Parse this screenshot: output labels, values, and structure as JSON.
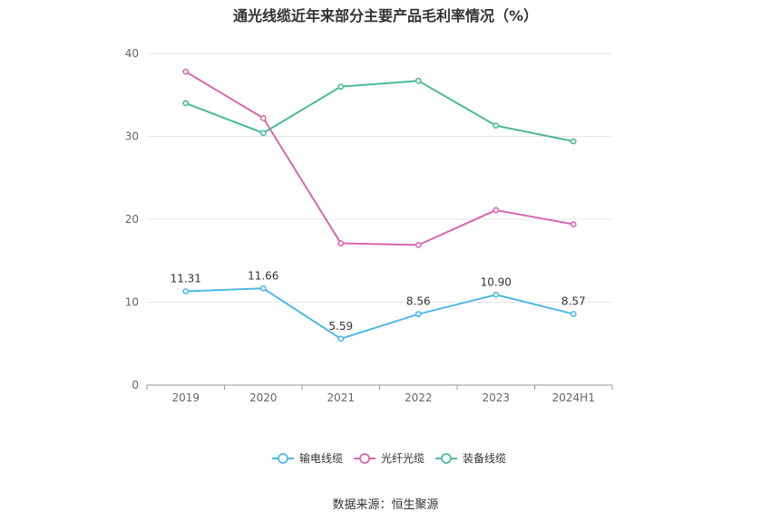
{
  "chart_data": {
    "type": "line",
    "title": "通光线缆近年来部分主要产品毛利率情况（%）",
    "categories": [
      "2019",
      "2020",
      "2021",
      "2022",
      "2023",
      "2024H1"
    ],
    "ylim": [
      0,
      40
    ],
    "yticks": [
      "0",
      "10",
      "20",
      "30",
      "40"
    ],
    "grid": true,
    "legend_position": "bottom",
    "series": [
      {
        "name": "输电线缆",
        "color": "#4fb8e8",
        "values": [
          11.31,
          11.66,
          5.59,
          8.56,
          10.9,
          8.57
        ],
        "labels": [
          "11.31",
          "11.66",
          "5.59",
          "8.56",
          "10.90",
          "8.57"
        ]
      },
      {
        "name": "光纤光缆",
        "color": "#d966b0",
        "values": [
          37.8,
          32.2,
          17.1,
          16.9,
          21.1,
          19.4
        ]
      },
      {
        "name": "装备线缆",
        "color": "#4db89a",
        "values": [
          34.0,
          30.4,
          36.0,
          36.7,
          31.3,
          29.4
        ]
      }
    ],
    "source": "数据来源：恒生聚源"
  }
}
